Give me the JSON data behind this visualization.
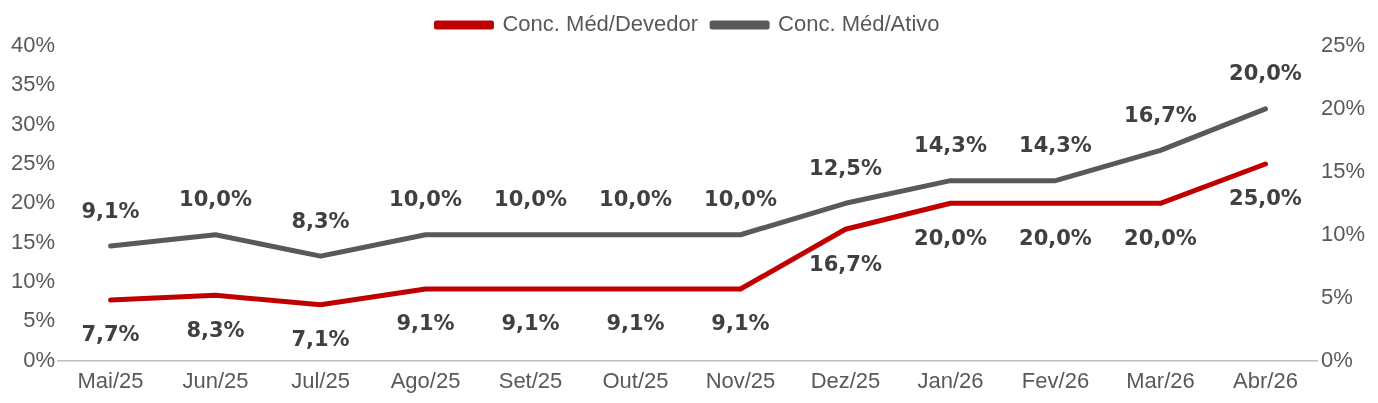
{
  "chart_data": {
    "type": "line",
    "legend": "top",
    "marker": "none",
    "categories": [
      "Mai/25",
      "Jun/25",
      "Jul/25",
      "Ago/25",
      "Set/25",
      "Out/25",
      "Nov/25",
      "Dez/25",
      "Jan/26",
      "Fev/26",
      "Mar/26",
      "Abr/26"
    ],
    "series": [
      {
        "name": "Conc. Méd/Devedor",
        "color": "#c00000",
        "axis": "y",
        "values": [
          7.7,
          8.3,
          7.1,
          9.1,
          9.1,
          9.1,
          9.1,
          16.7,
          20.0,
          20.0,
          20.0,
          25.0
        ],
        "value_labels": [
          "7,7%",
          "8,3%",
          "7,1%",
          "9,1%",
          "9,1%",
          "9,1%",
          "9,1%",
          "16,7%",
          "20,0%",
          "20,0%",
          "20,0%",
          "25,0%"
        ]
      },
      {
        "name": "Conc. Méd/Ativo",
        "color": "#595959",
        "axis": "y2",
        "values": [
          9.1,
          10.0,
          8.3,
          10.0,
          10.0,
          10.0,
          10.0,
          12.5,
          14.3,
          14.3,
          16.7,
          20.0
        ],
        "value_labels": [
          "9,1%",
          "10,0%",
          "8,3%",
          "10,0%",
          "10,0%",
          "10,0%",
          "10,0%",
          "12,5%",
          "14,3%",
          "14,3%",
          "16,7%",
          "20,0%"
        ]
      }
    ],
    "ylim": [
      0,
      40
    ],
    "yticks": [
      {
        "value": 0,
        "label": "0%"
      },
      {
        "value": 5,
        "label": "5%"
      },
      {
        "value": 10,
        "label": "10%"
      },
      {
        "value": 15,
        "label": "15%"
      },
      {
        "value": 20,
        "label": "20%"
      },
      {
        "value": 25,
        "label": "25%"
      },
      {
        "value": 30,
        "label": "30%"
      },
      {
        "value": 35,
        "label": "35%"
      },
      {
        "value": 40,
        "label": "40%"
      }
    ],
    "y2lim": [
      0,
      25
    ],
    "y2ticks": [
      {
        "value": 0,
        "label": "0%"
      },
      {
        "value": 5,
        "label": "5%"
      },
      {
        "value": 10,
        "label": "10%"
      },
      {
        "value": 15,
        "label": "15%"
      },
      {
        "value": 20,
        "label": "20%"
      },
      {
        "value": 25,
        "label": "25%"
      }
    ]
  }
}
